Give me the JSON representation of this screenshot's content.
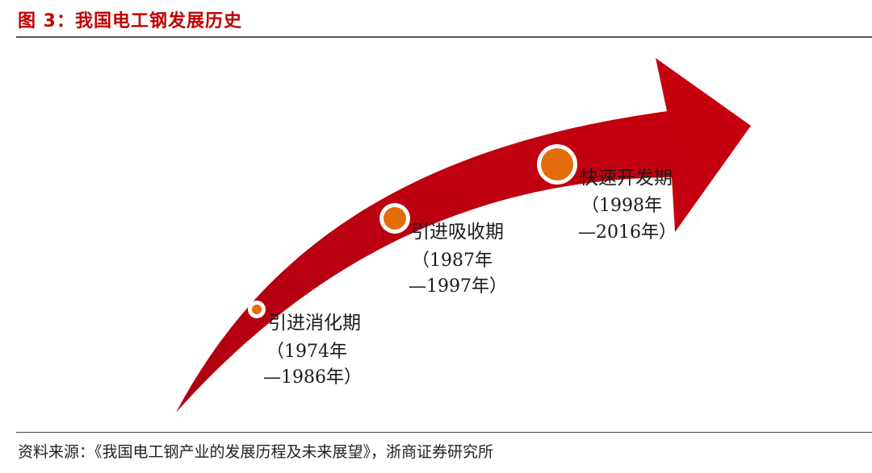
{
  "figure": {
    "title": "图 3：我国电工钢发展历史",
    "source": "资料来源：《我国电工钢产业的发展历程及未来展望》，浙商证券研究所"
  },
  "colors": {
    "title_red": "#c00000",
    "arrow_red": "#c00000",
    "marker_orange": "#e46c0a",
    "marker_ring": "#ffffff"
  },
  "stages": [
    {
      "name": "引进消化期",
      "years_line1": "（1974年",
      "years_line2": "—1986年）"
    },
    {
      "name": "引进吸收期",
      "years_line1": "（1987年",
      "years_line2": "—1997年）"
    },
    {
      "name": "快速开发期",
      "years_line1": "（1998年",
      "years_line2": "—2016年）"
    }
  ]
}
